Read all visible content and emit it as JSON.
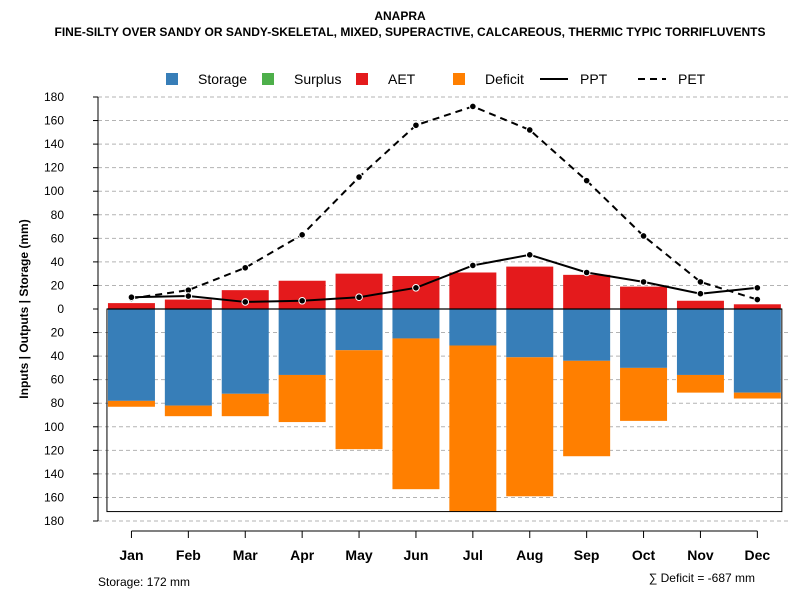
{
  "chart_data": {
    "type": "bar",
    "title": "ANAPRA",
    "subtitle": "FINE-SILTY OVER SANDY OR SANDY-SKELETAL, MIXED, SUPERACTIVE, CALCAREOUS, THERMIC TYPIC TORRIFLUVENTS",
    "ylabel": "Inputs | Outputs | Storage     (mm)",
    "ylim": [
      -180,
      180
    ],
    "yticks": [
      180,
      160,
      140,
      120,
      100,
      80,
      60,
      40,
      20,
      0,
      20,
      40,
      60,
      80,
      100,
      120,
      140,
      160,
      180
    ],
    "ytick_values": [
      180,
      160,
      140,
      120,
      100,
      80,
      60,
      40,
      20,
      0,
      -20,
      -40,
      -60,
      -80,
      -100,
      -120,
      -140,
      -160,
      -180
    ],
    "categories": [
      "Jan",
      "Feb",
      "Mar",
      "Apr",
      "May",
      "Jun",
      "Jul",
      "Aug",
      "Sep",
      "Oct",
      "Nov",
      "Dec"
    ],
    "grid": true,
    "legend_position": "top",
    "series": [
      {
        "name": "Storage",
        "kind": "bar-below",
        "values": [
          78,
          82,
          72,
          56,
          35,
          25,
          31,
          41,
          44,
          50,
          56,
          71
        ]
      },
      {
        "name": "Surplus",
        "kind": "bar-above",
        "values": [
          0,
          0,
          0,
          0,
          0,
          0,
          0,
          0,
          0,
          0,
          0,
          0
        ]
      },
      {
        "name": "AET",
        "kind": "bar-above",
        "values": [
          5,
          8,
          16,
          24,
          30,
          28,
          31,
          36,
          29,
          19,
          7,
          4
        ]
      },
      {
        "name": "Deficit",
        "kind": "bar-below-stacked",
        "values": [
          5,
          9,
          19,
          40,
          84,
          128,
          141,
          118,
          81,
          45,
          15,
          5
        ]
      },
      {
        "name": "PPT",
        "kind": "line-solid",
        "values": [
          10,
          11,
          6,
          7,
          10,
          18,
          37,
          46,
          31,
          23,
          13,
          18
        ]
      },
      {
        "name": "PET",
        "kind": "line-dashed",
        "values": [
          9,
          16,
          35,
          63,
          112,
          156,
          172,
          152,
          109,
          62,
          23,
          8
        ]
      }
    ],
    "colors": {
      "Storage": "#377eb8",
      "Surplus": "#4daf4a",
      "AET": "#e41a1c",
      "Deficit": "#ff7f00",
      "PPT": "#000000",
      "PET": "#000000"
    },
    "storage_capacity": 172
  },
  "footer": {
    "storage_text": "Storage: 172 mm",
    "deficit_text": "∑ Deficit = -687 mm"
  }
}
